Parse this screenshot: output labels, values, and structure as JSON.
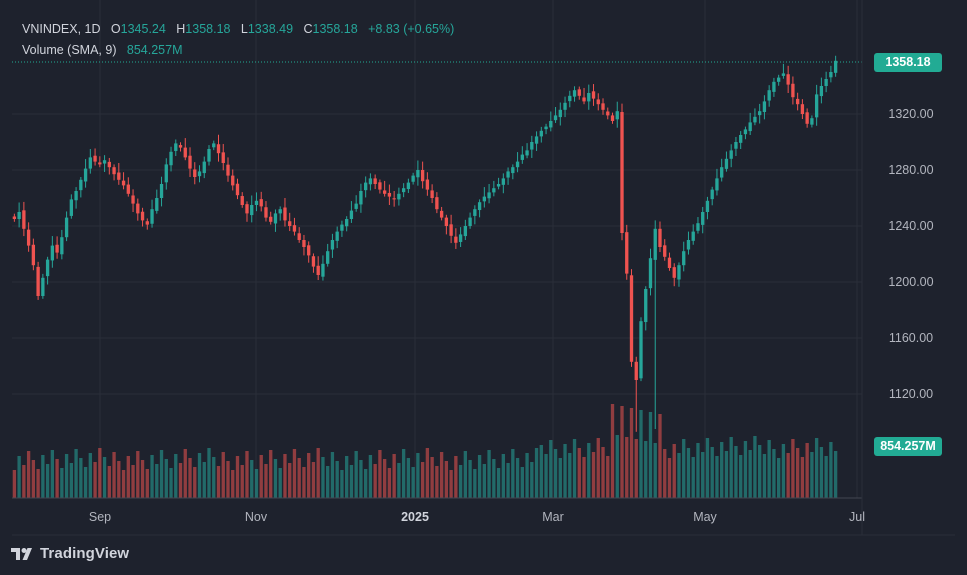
{
  "legend": {
    "symbol": "VNINDEX, 1D",
    "o_label": "O",
    "open": "1345.24",
    "h_label": "H",
    "high": "1358.18",
    "l_label": "L",
    "low": "1338.49",
    "c_label": "C",
    "close": "1358.18",
    "change": "+8.83 (+0.65%)",
    "volume_label": "Volume (SMA, 9)",
    "volume_value": "854.257M"
  },
  "last_price_tag": "1358.18",
  "volume_tag": "854.257M",
  "brand": "TradingView",
  "colors": {
    "background": "#1e222d",
    "up": "#26a69a",
    "down": "#ef5350",
    "grid": "#2a2e39",
    "text": "#b2b5be"
  },
  "chart_data": {
    "type": "candlestick",
    "symbol": "VNINDEX",
    "interval": "1D",
    "y_ticks": [
      1120,
      1160,
      1200,
      1240,
      1280,
      1320
    ],
    "ylim": [
      1080,
      1375
    ],
    "x_ticks": [
      "Sep",
      "Nov",
      "2025",
      "Mar",
      "May",
      "Jul"
    ],
    "last_close": 1358.18,
    "last_volume": "854.257M",
    "note_values_estimated": true,
    "candles_close": [
      1245,
      1250,
      1238,
      1226,
      1212,
      1190,
      1203,
      1216,
      1226,
      1221,
      1232,
      1246,
      1259,
      1265,
      1273,
      1281,
      1289,
      1286,
      1284,
      1287,
      1282,
      1277,
      1273,
      1269,
      1263,
      1256,
      1249,
      1244,
      1241,
      1252,
      1260,
      1270,
      1284,
      1293,
      1299,
      1296,
      1289,
      1281,
      1275,
      1279,
      1286,
      1295,
      1299,
      1292,
      1285,
      1276,
      1269,
      1262,
      1255,
      1249,
      1255,
      1258,
      1254,
      1246,
      1243,
      1249,
      1252,
      1244,
      1240,
      1236,
      1230,
      1225,
      1219,
      1211,
      1205,
      1213,
      1222,
      1230,
      1236,
      1241,
      1245,
      1251,
      1256,
      1265,
      1271,
      1274,
      1270,
      1266,
      1263,
      1261,
      1259,
      1263,
      1267,
      1271,
      1276,
      1280,
      1272,
      1266,
      1260,
      1252,
      1246,
      1240,
      1233,
      1228,
      1234,
      1240,
      1246,
      1252,
      1257,
      1261,
      1264,
      1267,
      1270,
      1274,
      1279,
      1282,
      1286,
      1291,
      1294,
      1300,
      1304,
      1308,
      1311,
      1315,
      1319,
      1323,
      1328,
      1333,
      1337,
      1333,
      1329,
      1335,
      1331,
      1327,
      1323,
      1319,
      1315,
      1322,
      1235,
      1206,
      1143,
      1130,
      1172,
      1195,
      1217,
      1238,
      1225,
      1218,
      1210,
      1203,
      1212,
      1222,
      1230,
      1236,
      1242,
      1250,
      1258,
      1266,
      1274,
      1282,
      1288,
      1294,
      1300,
      1305,
      1309,
      1314,
      1318,
      1322,
      1329,
      1337,
      1343,
      1346,
      1349,
      1341,
      1332,
      1327,
      1320,
      1313,
      1317,
      1334,
      1340,
      1345,
      1350,
      1358
    ]
  }
}
